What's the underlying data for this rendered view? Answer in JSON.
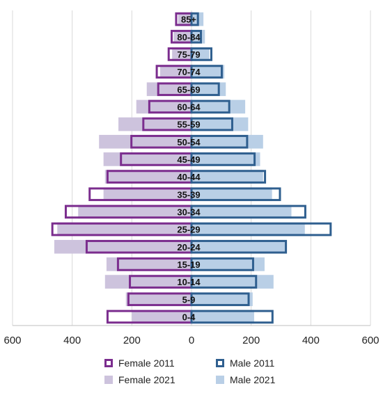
{
  "chart_data": {
    "type": "bar",
    "orientation": "horizontal-population-pyramid",
    "categories": [
      "0-4",
      "5-9",
      "10-14",
      "15-19",
      "20-24",
      "25-29",
      "30-34",
      "35-39",
      "40-44",
      "45-49",
      "50-54",
      "55-59",
      "60-64",
      "65-69",
      "70-74",
      "75-79",
      "80-84",
      "85+"
    ],
    "series": [
      {
        "name": "Female 2011",
        "side": "left",
        "style": "outline",
        "color": "#7b2d8e",
        "values": [
          285,
          215,
          210,
          250,
          355,
          470,
          425,
          345,
          285,
          240,
          205,
          165,
          145,
          115,
          120,
          80,
          70,
          55
        ]
      },
      {
        "name": "Male 2011",
        "side": "right",
        "style": "outline",
        "color": "#2f5f8f",
        "values": [
          275,
          195,
          220,
          210,
          320,
          470,
          385,
          300,
          250,
          215,
          190,
          140,
          130,
          95,
          105,
          70,
          35,
          25
        ]
      },
      {
        "name": "Female 2021",
        "side": "left",
        "style": "filled",
        "color": "#cdc3dd",
        "values": [
          200,
          220,
          290,
          285,
          460,
          450,
          380,
          295,
          290,
          295,
          310,
          245,
          185,
          150,
          105,
          65,
          60,
          45
        ]
      },
      {
        "name": "Male 2021",
        "side": "right",
        "style": "filled",
        "color": "#b9cfe6",
        "values": [
          210,
          205,
          275,
          245,
          320,
          380,
          335,
          270,
          240,
          230,
          240,
          190,
          180,
          115,
          110,
          60,
          45,
          40
        ]
      }
    ],
    "x_ticks": [
      "600",
      "400",
      "200",
      "0",
      "200",
      "400",
      "600"
    ],
    "xlim": [
      -600,
      600
    ],
    "grid": "vertical",
    "legend_position": "bottom",
    "title": "",
    "xlabel": "",
    "ylabel": ""
  },
  "legend": {
    "female_2011": "Female 2011",
    "male_2011": "Male 2011",
    "female_2021": "Female 2021",
    "male_2021": "Male 2021"
  }
}
